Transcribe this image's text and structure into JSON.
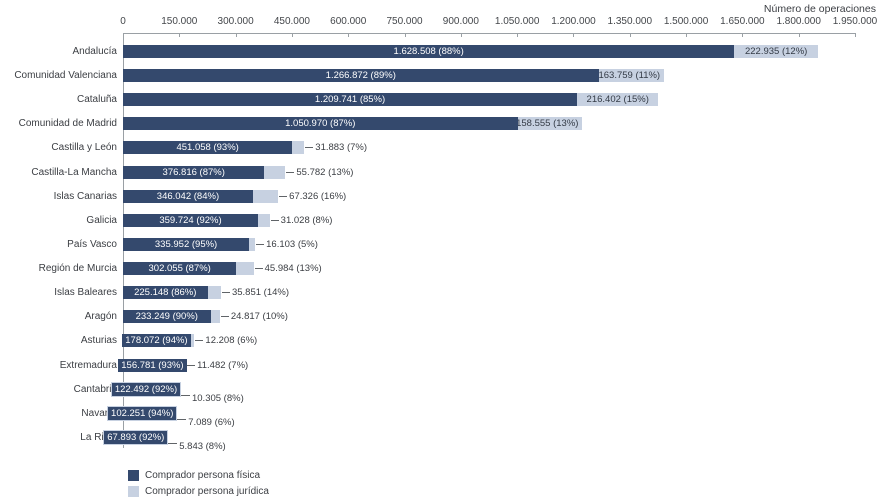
{
  "header": {
    "axis_title": "Número de operaciones"
  },
  "colors": {
    "bar_dark": "#34496d",
    "bar_light": "#c7d1e1",
    "text": "#3b3e43",
    "bar_label_dark_text": "#ffffff",
    "bar_label_light_text": "#343b46",
    "axis_line": "#9aa0a5",
    "connector": "#606468",
    "dark_label_border": "#c7d1e1",
    "background": "#ffffff"
  },
  "legend": {
    "items": [
      {
        "label": "Comprador persona física",
        "color": "#34496d"
      },
      {
        "label": "Comprador persona jurídica",
        "color": "#c7d1e1"
      }
    ]
  },
  "chart_data": {
    "type": "bar",
    "orientation": "horizontal",
    "stacked": true,
    "title": "Número de operaciones",
    "xlabel": "Número de operaciones",
    "xlim": [
      0,
      1950000
    ],
    "grid": false,
    "legend_position": "bottom-left",
    "x_tick_values": [
      0,
      150000,
      300000,
      450000,
      600000,
      750000,
      900000,
      1050000,
      1200000,
      1350000,
      1500000,
      1650000,
      1800000,
      1950000
    ],
    "x_tick_labels": [
      "0",
      "150.000",
      "300.000",
      "450.000",
      "600.000",
      "750.000",
      "900.000",
      "1.050.000",
      "1.200.000",
      "1.350.000",
      "1.500.000",
      "1.650.000",
      "1.800.000",
      "1.950.000"
    ],
    "categories": [
      "Andalucía",
      "Comunidad Valenciana",
      "Cataluña",
      "Comunidad de Madrid",
      "Castilla y León",
      "Castilla-La Mancha",
      "Islas Canarias",
      "Galicia",
      "País Vasco",
      "Región de Murcia",
      "Islas Baleares",
      "Aragón",
      "Asturias",
      "Extremadura",
      "Cantabria",
      "Navarra",
      "La Rioja"
    ],
    "series": [
      {
        "name": "Comprador persona física",
        "color": "#34496d",
        "values": [
          1628508,
          1266872,
          1209741,
          1050970,
          451058,
          376816,
          346042,
          359724,
          335952,
          302055,
          225148,
          233249,
          178072,
          156781,
          122492,
          102251,
          67893
        ]
      },
      {
        "name": "Comprador persona jurídica",
        "color": "#c7d1e1",
        "values": [
          222935,
          163759,
          216402,
          158555,
          31883,
          55782,
          67326,
          31028,
          16103,
          45984,
          35851,
          24817,
          12208,
          11482,
          10305,
          7089,
          5843
        ]
      }
    ],
    "rows": [
      {
        "region": "Andalucía",
        "fisica": 1628508,
        "fisica_label": "1.628.508 (88%)",
        "juridica": 222935,
        "juridica_label": "222.935 (12%)",
        "juridica_label_mode": "inside"
      },
      {
        "region": "Comunidad Valenciana",
        "fisica": 1266872,
        "fisica_label": "1.266.872 (89%)",
        "juridica": 163759,
        "juridica_label": "163.759 (11%)",
        "juridica_label_mode": "inside"
      },
      {
        "region": "Cataluña",
        "fisica": 1209741,
        "fisica_label": "1.209.741 (85%)",
        "juridica": 216402,
        "juridica_label": "216.402 (15%)",
        "juridica_label_mode": "inside"
      },
      {
        "region": "Comunidad de Madrid",
        "fisica": 1050970,
        "fisica_label": "1.050.970 (87%)",
        "juridica": 158555,
        "juridica_label": "158.555 (13%)",
        "juridica_label_mode": "inside"
      },
      {
        "region": "Castilla y León",
        "fisica": 451058,
        "fisica_label": "451.058 (93%)",
        "juridica": 31883,
        "juridica_label": "31.883 (7%)",
        "juridica_label_mode": "right"
      },
      {
        "region": "Castilla-La Mancha",
        "fisica": 376816,
        "fisica_label": "376.816 (87%)",
        "juridica": 55782,
        "juridica_label": "55.782 (13%)",
        "juridica_label_mode": "right"
      },
      {
        "region": "Islas Canarias",
        "fisica": 346042,
        "fisica_label": "346.042 (84%)",
        "juridica": 67326,
        "juridica_label": "67.326 (16%)",
        "juridica_label_mode": "right"
      },
      {
        "region": "Galicia",
        "fisica": 359724,
        "fisica_label": "359.724 (92%)",
        "juridica": 31028,
        "juridica_label": "31.028 (8%)",
        "juridica_label_mode": "right"
      },
      {
        "region": "País Vasco",
        "fisica": 335952,
        "fisica_label": "335.952 (95%)",
        "juridica": 16103,
        "juridica_label": "16.103 (5%)",
        "juridica_label_mode": "right"
      },
      {
        "region": "Región de Murcia",
        "fisica": 302055,
        "fisica_label": "302.055 (87%)",
        "juridica": 45984,
        "juridica_label": "45.984 (13%)",
        "juridica_label_mode": "right"
      },
      {
        "region": "Islas Baleares",
        "fisica": 225148,
        "fisica_label": "225.148 (86%)",
        "juridica": 35851,
        "juridica_label": "35.851 (14%)",
        "juridica_label_mode": "right"
      },
      {
        "region": "Aragón",
        "fisica": 233249,
        "fisica_label": "233.249 (90%)",
        "juridica": 24817,
        "juridica_label": "24.817 (10%)",
        "juridica_label_mode": "right"
      },
      {
        "region": "Asturias",
        "fisica": 178072,
        "fisica_label": "178.072 (94%)",
        "juridica": 12208,
        "juridica_label": "12.208 (6%)",
        "juridica_label_mode": "right"
      },
      {
        "region": "Extremadura",
        "fisica": 156781,
        "fisica_label": "156.781 (93%)",
        "juridica": 11482,
        "juridica_label": "11.482 (7%)",
        "juridica_label_mode": "right"
      },
      {
        "region": "Cantabria",
        "fisica": 122492,
        "fisica_label": "122.492 (92%)",
        "juridica": 10305,
        "juridica_label": "10.305 (8%)",
        "juridica_label_mode": "below"
      },
      {
        "region": "Navarra",
        "fisica": 102251,
        "fisica_label": "102.251 (94%)",
        "juridica": 7089,
        "juridica_label": "7.089 (6%)",
        "juridica_label_mode": "below"
      },
      {
        "region": "La Rioja",
        "fisica": 67893,
        "fisica_label": "67.893 (92%)",
        "juridica": 5843,
        "juridica_label": "5.843 (8%)",
        "juridica_label_mode": "below"
      }
    ]
  }
}
